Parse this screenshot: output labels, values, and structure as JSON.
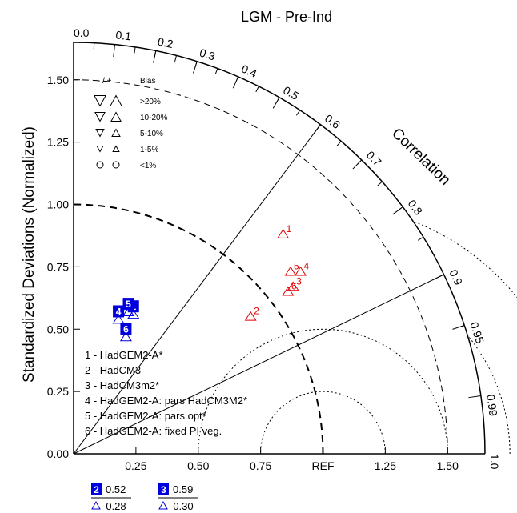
{
  "chart_data": {
    "type": "scatter",
    "subtype": "taylor-diagram",
    "title": "LGM - Pre-Ind",
    "ylabel": "Standardized Deviations (Normalized)",
    "arc_label": "Correlation",
    "ref_label": "REF",
    "std_ticks": [
      "0.00",
      "0.25",
      "0.50",
      "0.75",
      "1.00",
      "1.25",
      "1.50"
    ],
    "x_ticks": [
      "0.25",
      "0.50",
      "0.75",
      "REF",
      "1.25",
      "1.50"
    ],
    "x_tick_values": [
      0.25,
      0.5,
      0.75,
      1.0,
      1.25,
      1.5
    ],
    "std_tick_values": [
      0,
      0.25,
      0.5,
      0.75,
      1.0,
      1.25,
      1.5
    ],
    "std_max": 1.65,
    "corr_ticks": [
      {
        "v": 0.0,
        "t": "0.0"
      },
      {
        "v": 0.1,
        "t": "0.1"
      },
      {
        "v": 0.2,
        "t": "0.2"
      },
      {
        "v": 0.3,
        "t": "0.3"
      },
      {
        "v": 0.4,
        "t": "0.4"
      },
      {
        "v": 0.5,
        "t": "0.5"
      },
      {
        "v": 0.6,
        "t": "0.6"
      },
      {
        "v": 0.7,
        "t": "0.7"
      },
      {
        "v": 0.8,
        "t": "0.8"
      },
      {
        "v": 0.9,
        "t": "0.9"
      },
      {
        "v": 0.95,
        "t": "0.95"
      },
      {
        "v": 0.99,
        "t": "0.99"
      },
      {
        "v": 1.0,
        "t": "1.0"
      }
    ],
    "radial_lines": [
      0.6,
      0.9
    ],
    "rms_arcs": [
      0.25,
      0.5,
      0.75,
      1.0
    ],
    "std_arcs_dashed": [
      1.5
    ],
    "ref_std": 1.0,
    "red_points": [
      {
        "label": "1",
        "x": 0.84,
        "y": 0.88
      },
      {
        "label": "2",
        "x": 0.71,
        "y": 0.55
      },
      {
        "label": "3",
        "x": 0.88,
        "y": 0.67
      },
      {
        "label": "4",
        "x": 0.91,
        "y": 0.73
      },
      {
        "label": "5",
        "x": 0.87,
        "y": 0.73
      },
      {
        "label": "6",
        "x": 0.86,
        "y": 0.65
      }
    ],
    "blue_points": [
      {
        "label": "1",
        "x": 0.24,
        "y": 0.59,
        "marker_offset": [
          0,
          0
        ]
      },
      {
        "label": "4",
        "x": 0.18,
        "y": 0.57,
        "marker_offset": [
          0,
          0
        ]
      },
      {
        "label": "5",
        "x": 0.22,
        "y": 0.6,
        "marker_offset": [
          0,
          0
        ]
      },
      {
        "label": "6",
        "x": 0.21,
        "y": 0.5,
        "marker_offset": [
          0,
          0
        ]
      }
    ],
    "legend": {
      "items": [
        "1 - HadGEM2-A*",
        "2 - HadCM3",
        "3 - HadCM3m2*",
        "4 - HadGEM2-A: pars HadCM3M2*",
        "5 - HadGEM2-A: pars opt*",
        "6 - HadGEM2-A: fixed PI veg."
      ]
    },
    "bias_legend": {
      "header_neg_pos": "- / +",
      "header_label": "Bias",
      "rows": [
        ">20%",
        "10-20%",
        "5-10%",
        "1-5%",
        "<1%"
      ]
    },
    "off_chart": [
      {
        "box": "2",
        "value": "0.52",
        "bias": "-0.28"
      },
      {
        "box": "3",
        "value": "0.59",
        "bias": "-0.30"
      }
    ],
    "colors": {
      "model_red": "#e00000",
      "model_blue": "#0000dd",
      "axis": "#000000"
    }
  }
}
